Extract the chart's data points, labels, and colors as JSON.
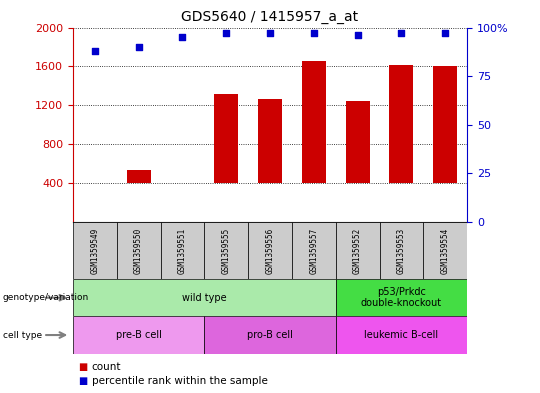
{
  "title": "GDS5640 / 1415957_a_at",
  "samples": [
    "GSM1359549",
    "GSM1359550",
    "GSM1359551",
    "GSM1359555",
    "GSM1359556",
    "GSM1359557",
    "GSM1359552",
    "GSM1359553",
    "GSM1359554"
  ],
  "counts": [
    370,
    530,
    390,
    1320,
    1270,
    1660,
    1240,
    1610,
    1600
  ],
  "percentiles": [
    88,
    90,
    95,
    97,
    97,
    97,
    96,
    97,
    97
  ],
  "ylim_left": [
    0,
    2000
  ],
  "ylim_right": [
    0,
    100
  ],
  "yticks_left": [
    400,
    800,
    1200,
    1600,
    2000
  ],
  "yticks_right": [
    0,
    25,
    50,
    75,
    100
  ],
  "bar_color": "#cc0000",
  "dot_color": "#0000cc",
  "bar_bottom": 400,
  "genotype_groups": [
    {
      "label": "wild type",
      "start": 0,
      "end": 6,
      "color": "#aaeaaa"
    },
    {
      "label": "p53/Prkdc\ndouble-knockout",
      "start": 6,
      "end": 9,
      "color": "#44dd44"
    }
  ],
  "celltype_groups": [
    {
      "label": "pre-B cell",
      "start": 0,
      "end": 3,
      "color": "#ee99ee"
    },
    {
      "label": "pro-B cell",
      "start": 3,
      "end": 6,
      "color": "#dd66dd"
    },
    {
      "label": "leukemic B-cell",
      "start": 6,
      "end": 9,
      "color": "#ee55ee"
    }
  ],
  "background_color": "#ffffff",
  "grid_color": "#000000",
  "sample_box_color": "#cccccc",
  "right_axis_label_100": "100%"
}
